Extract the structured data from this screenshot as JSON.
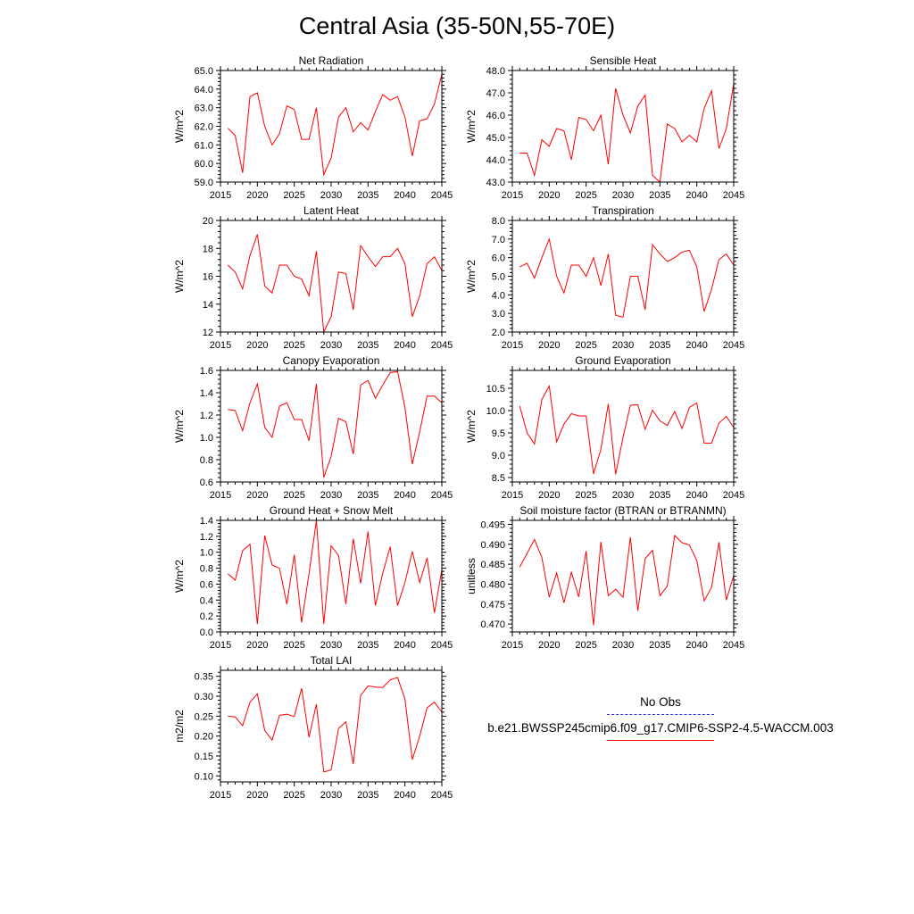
{
  "page": {
    "title": "Central Asia (35-50N,55-70E)"
  },
  "legend": {
    "obs_label": "No Obs",
    "model_label": "b.e21.BWSSP245cmip6.f09_g17.CMIP6-SSP2-4.5-WACCM.003",
    "obs_color": "#3333cc",
    "model_color": "#ff0000"
  },
  "chart_data": [
    {
      "type": "line",
      "title": "Net Radiation",
      "ylabel": "W/m^2",
      "xlim": [
        2015,
        2045
      ],
      "ylim": [
        59,
        65
      ],
      "xticks": [
        2015,
        2020,
        2025,
        2030,
        2035,
        2040,
        2045
      ],
      "yticks": [
        59.0,
        60.0,
        61.0,
        62.0,
        63.0,
        64.0,
        65.0
      ],
      "ytick_labels": [
        "59.0",
        "60.0",
        "61.0",
        "62.0",
        "63.0",
        "64.0",
        "65.0"
      ],
      "x": [
        2016,
        2017,
        2018,
        2019,
        2020,
        2021,
        2022,
        2023,
        2024,
        2025,
        2026,
        2027,
        2028,
        2029,
        2030,
        2031,
        2032,
        2033,
        2034,
        2035,
        2036,
        2037,
        2038,
        2039,
        2040,
        2041,
        2042,
        2043,
        2044,
        2045
      ],
      "series": [
        {
          "values": [
            61.9,
            61.5,
            59.5,
            63.6,
            63.8,
            62.0,
            61.0,
            61.6,
            63.1,
            62.9,
            61.3,
            61.3,
            63.0,
            59.4,
            60.3,
            62.5,
            63.0,
            61.7,
            62.2,
            61.8,
            62.8,
            63.7,
            63.4,
            63.6,
            62.5,
            60.4,
            62.3,
            62.4,
            63.2,
            64.8
          ]
        }
      ]
    },
    {
      "type": "line",
      "title": "Sensible Heat",
      "ylabel": "W/m^2",
      "xlim": [
        2015,
        2045
      ],
      "ylim": [
        43,
        48
      ],
      "xticks": [
        2015,
        2020,
        2025,
        2030,
        2035,
        2040,
        2045
      ],
      "yticks": [
        43.0,
        44.0,
        45.0,
        46.0,
        47.0,
        48.0
      ],
      "ytick_labels": [
        "43.0",
        "44.0",
        "45.0",
        "46.0",
        "47.0",
        "48.0"
      ],
      "x": [
        2016,
        2017,
        2018,
        2019,
        2020,
        2021,
        2022,
        2023,
        2024,
        2025,
        2026,
        2027,
        2028,
        2029,
        2030,
        2031,
        2032,
        2033,
        2034,
        2035,
        2036,
        2037,
        2038,
        2039,
        2040,
        2041,
        2042,
        2043,
        2044,
        2045
      ],
      "series": [
        {
          "values": [
            44.3,
            44.3,
            43.3,
            44.9,
            44.6,
            45.4,
            45.3,
            44.0,
            45.9,
            45.8,
            45.3,
            46.0,
            43.8,
            47.2,
            46.0,
            45.2,
            46.4,
            46.9,
            43.3,
            43.0,
            45.6,
            45.4,
            44.8,
            45.1,
            44.8,
            46.3,
            47.1,
            44.5,
            45.4,
            47.4
          ]
        }
      ]
    },
    {
      "type": "line",
      "title": "Latent Heat",
      "ylabel": "W/m^2",
      "xlim": [
        2015,
        2045
      ],
      "ylim": [
        12,
        20
      ],
      "xticks": [
        2015,
        2020,
        2025,
        2030,
        2035,
        2040,
        2045
      ],
      "yticks": [
        12,
        14,
        16,
        18,
        20
      ],
      "ytick_labels": [
        "12",
        "14",
        "16",
        "18",
        "20"
      ],
      "x": [
        2016,
        2017,
        2018,
        2019,
        2020,
        2021,
        2022,
        2023,
        2024,
        2025,
        2026,
        2027,
        2028,
        2029,
        2030,
        2031,
        2032,
        2033,
        2034,
        2035,
        2036,
        2037,
        2038,
        2039,
        2040,
        2041,
        2042,
        2043,
        2044,
        2045
      ],
      "series": [
        {
          "values": [
            16.8,
            16.3,
            15.1,
            17.5,
            19.0,
            15.3,
            14.8,
            16.8,
            16.8,
            16.0,
            15.8,
            14.6,
            17.8,
            12.0,
            13.1,
            16.3,
            16.2,
            13.6,
            18.2,
            17.4,
            16.7,
            17.4,
            17.4,
            18.0,
            16.9,
            13.1,
            14.6,
            16.9,
            17.4,
            16.4
          ]
        }
      ]
    },
    {
      "type": "line",
      "title": "Transpiration",
      "ylabel": "W/m^2",
      "xlim": [
        2015,
        2045
      ],
      "ylim": [
        2,
        8
      ],
      "xticks": [
        2015,
        2020,
        2025,
        2030,
        2035,
        2040,
        2045
      ],
      "yticks": [
        2.0,
        3.0,
        4.0,
        5.0,
        6.0,
        7.0,
        8.0
      ],
      "ytick_labels": [
        "2.0",
        "3.0",
        "4.0",
        "5.0",
        "6.0",
        "7.0",
        "8.0"
      ],
      "x": [
        2016,
        2017,
        2018,
        2019,
        2020,
        2021,
        2022,
        2023,
        2024,
        2025,
        2026,
        2027,
        2028,
        2029,
        2030,
        2031,
        2032,
        2033,
        2034,
        2035,
        2036,
        2037,
        2038,
        2039,
        2040,
        2041,
        2042,
        2043,
        2044,
        2045
      ],
      "series": [
        {
          "values": [
            5.5,
            5.7,
            4.9,
            6.0,
            7.0,
            5.0,
            4.1,
            5.6,
            5.6,
            5.0,
            6.0,
            4.5,
            6.2,
            2.9,
            2.8,
            5.0,
            5.0,
            3.2,
            6.7,
            6.2,
            5.8,
            6.0,
            6.3,
            6.4,
            5.5,
            3.1,
            4.3,
            5.9,
            6.2,
            5.6
          ]
        }
      ]
    },
    {
      "type": "line",
      "title": "Canopy Evaporation",
      "ylabel": "W/m^2",
      "xlim": [
        2015,
        2045
      ],
      "ylim": [
        0.6,
        1.6
      ],
      "xticks": [
        2015,
        2020,
        2025,
        2030,
        2035,
        2040,
        2045
      ],
      "yticks": [
        0.6,
        0.8,
        1.0,
        1.2,
        1.4,
        1.6
      ],
      "ytick_labels": [
        "0.6",
        "0.8",
        "1.0",
        "1.2",
        "1.4",
        "1.6"
      ],
      "x": [
        2016,
        2017,
        2018,
        2019,
        2020,
        2021,
        2022,
        2023,
        2024,
        2025,
        2026,
        2027,
        2028,
        2029,
        2030,
        2031,
        2032,
        2033,
        2034,
        2035,
        2036,
        2037,
        2038,
        2039,
        2040,
        2041,
        2042,
        2043,
        2044,
        2045
      ],
      "series": [
        {
          "values": [
            1.25,
            1.24,
            1.06,
            1.31,
            1.48,
            1.09,
            1.0,
            1.28,
            1.31,
            1.16,
            1.16,
            0.97,
            1.48,
            0.64,
            0.83,
            1.17,
            1.14,
            0.85,
            1.47,
            1.51,
            1.35,
            1.47,
            1.58,
            1.59,
            1.27,
            0.76,
            1.05,
            1.37,
            1.37,
            1.31
          ]
        }
      ]
    },
    {
      "type": "line",
      "title": "Ground Evaporation",
      "ylabel": "W/m^2",
      "xlim": [
        2015,
        2045
      ],
      "ylim": [
        8.4,
        10.9
      ],
      "xticks": [
        2015,
        2020,
        2025,
        2030,
        2035,
        2040,
        2045
      ],
      "yticks": [
        8.5,
        9.0,
        9.5,
        10.0,
        10.5
      ],
      "ytick_labels": [
        "8.5",
        "9.0",
        "9.5",
        "10.0",
        "10.5"
      ],
      "x": [
        2016,
        2017,
        2018,
        2019,
        2020,
        2021,
        2022,
        2023,
        2024,
        2025,
        2026,
        2027,
        2028,
        2029,
        2030,
        2031,
        2032,
        2033,
        2034,
        2035,
        2036,
        2037,
        2038,
        2039,
        2040,
        2041,
        2042,
        2043,
        2044,
        2045
      ],
      "series": [
        {
          "values": [
            10.1,
            9.5,
            9.25,
            10.25,
            10.55,
            9.3,
            9.7,
            9.93,
            9.88,
            9.88,
            8.58,
            9.13,
            10.15,
            8.57,
            9.4,
            10.12,
            10.13,
            9.58,
            10.01,
            9.77,
            9.67,
            9.98,
            9.6,
            10.07,
            10.17,
            9.27,
            9.27,
            9.72,
            9.87,
            9.62
          ]
        }
      ]
    },
    {
      "type": "line",
      "title": "Ground Heat + Snow Melt",
      "ylabel": "W/m^2",
      "xlim": [
        2015,
        2045
      ],
      "ylim": [
        0.0,
        1.4
      ],
      "xticks": [
        2015,
        2020,
        2025,
        2030,
        2035,
        2040,
        2045
      ],
      "yticks": [
        0.0,
        0.2,
        0.4,
        0.6,
        0.8,
        1.0,
        1.2,
        1.4
      ],
      "ytick_labels": [
        "0.0",
        "0.2",
        "0.4",
        "0.6",
        "0.8",
        "1.0",
        "1.2",
        "1.4"
      ],
      "x": [
        2016,
        2017,
        2018,
        2019,
        2020,
        2021,
        2022,
        2023,
        2024,
        2025,
        2026,
        2027,
        2028,
        2029,
        2030,
        2031,
        2032,
        2033,
        2034,
        2035,
        2036,
        2037,
        2038,
        2039,
        2040,
        2041,
        2042,
        2043,
        2044,
        2045
      ],
      "series": [
        {
          "values": [
            0.73,
            0.65,
            1.02,
            1.1,
            0.1,
            1.21,
            0.84,
            0.8,
            0.35,
            0.97,
            0.12,
            0.73,
            1.4,
            0.1,
            1.08,
            0.96,
            0.35,
            1.17,
            0.61,
            1.26,
            0.33,
            0.74,
            1.07,
            0.33,
            0.62,
            1.01,
            0.62,
            0.93,
            0.24,
            0.78
          ]
        }
      ]
    },
    {
      "type": "line",
      "title": "Soil moisture factor (BTRAN or BTRANMN)",
      "ylabel": "unitless",
      "xlim": [
        2015,
        2045
      ],
      "ylim": [
        0.468,
        0.496
      ],
      "xticks": [
        2015,
        2020,
        2025,
        2030,
        2035,
        2040,
        2045
      ],
      "yticks": [
        0.47,
        0.475,
        0.48,
        0.485,
        0.49,
        0.495
      ],
      "ytick_labels": [
        "0.470",
        "0.475",
        "0.480",
        "0.485",
        "0.490",
        "0.495"
      ],
      "x": [
        2016,
        2017,
        2018,
        2019,
        2020,
        2021,
        2022,
        2023,
        2024,
        2025,
        2026,
        2027,
        2028,
        2029,
        2030,
        2031,
        2032,
        2033,
        2034,
        2035,
        2036,
        2037,
        2038,
        2039,
        2040,
        2041,
        2042,
        2043,
        2044,
        2045
      ],
      "series": [
        {
          "values": [
            0.4843,
            0.4877,
            0.4912,
            0.4867,
            0.4767,
            0.4828,
            0.4753,
            0.483,
            0.4768,
            0.4883,
            0.4697,
            0.4906,
            0.4771,
            0.4787,
            0.4767,
            0.4918,
            0.4733,
            0.4864,
            0.4885,
            0.4771,
            0.4795,
            0.4922,
            0.4904,
            0.4898,
            0.4859,
            0.4758,
            0.4792,
            0.4905,
            0.476,
            0.4822
          ]
        }
      ]
    },
    {
      "type": "line",
      "title": "Total LAI",
      "ylabel": "m2/m2",
      "xlim": [
        2015,
        2045
      ],
      "ylim": [
        0.085,
        0.365
      ],
      "xticks": [
        2015,
        2020,
        2025,
        2030,
        2035,
        2040,
        2045
      ],
      "yticks": [
        0.1,
        0.15,
        0.2,
        0.25,
        0.3,
        0.35
      ],
      "ytick_labels": [
        "0.10",
        "0.15",
        "0.20",
        "0.25",
        "0.30",
        "0.35"
      ],
      "x": [
        2016,
        2017,
        2018,
        2019,
        2020,
        2021,
        2022,
        2023,
        2024,
        2025,
        2026,
        2027,
        2028,
        2029,
        2030,
        2031,
        2032,
        2033,
        2034,
        2035,
        2036,
        2037,
        2038,
        2039,
        2040,
        2041,
        2042,
        2043,
        2044,
        2045
      ],
      "series": [
        {
          "values": [
            0.25,
            0.248,
            0.226,
            0.285,
            0.306,
            0.214,
            0.19,
            0.252,
            0.255,
            0.249,
            0.32,
            0.197,
            0.28,
            0.11,
            0.115,
            0.219,
            0.236,
            0.13,
            0.302,
            0.326,
            0.323,
            0.322,
            0.341,
            0.347,
            0.293,
            0.141,
            0.2,
            0.271,
            0.285,
            0.26
          ]
        }
      ]
    }
  ]
}
